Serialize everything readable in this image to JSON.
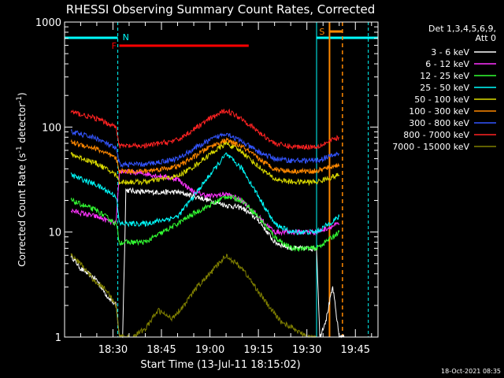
{
  "chart_data": {
    "type": "line",
    "title": "RHESSI Observing Summary Count Rates, Corrected",
    "xlabel": "Start Time (13-Jul-11 18:15:02)",
    "ylabel_main": "Corrected Count Rate (s",
    "ylabel_sup1": "-1",
    "ylabel_mid": " detector",
    "ylabel_sup2": "-1",
    "ylabel_end": ")",
    "y_scale": "log",
    "ylim": [
      1,
      1000
    ],
    "y_ticks": [
      {
        "value": 1,
        "label": "1"
      },
      {
        "value": 10,
        "label": "10"
      },
      {
        "value": 100,
        "label": "100"
      },
      {
        "value": 1000,
        "label": "1000"
      }
    ],
    "xlim": [
      "18:15:02",
      "19:52:00"
    ],
    "x_ticks": [
      {
        "time": "18:30",
        "label": "18:30"
      },
      {
        "time": "18:45",
        "label": "18:45"
      },
      {
        "time": "19:00",
        "label": "19:00"
      },
      {
        "time": "19:15",
        "label": "19:15"
      },
      {
        "time": "19:30",
        "label": "19:30"
      },
      {
        "time": "19:45",
        "label": "19:45"
      }
    ],
    "legend_title_1": "Det 1,3,4,5,6,9,",
    "legend_title_2": "Att 0",
    "legend_placement": "right",
    "series": [
      {
        "name": "3 - 6 keV",
        "color": "#ffffff",
        "points": [
          [
            "18:17",
            6
          ],
          [
            "18:20",
            4.5
          ],
          [
            "18:25",
            3.5
          ],
          [
            "18:28",
            2.5
          ],
          [
            "18:31",
            2
          ],
          [
            "18:32",
            1
          ],
          [
            "18:33",
            1
          ],
          [
            "18:34",
            25
          ],
          [
            "18:40",
            24
          ],
          [
            "18:50",
            24
          ],
          [
            "18:55",
            22
          ],
          [
            "19:00",
            20
          ],
          [
            "19:05",
            18
          ],
          [
            "19:10",
            17
          ],
          [
            "19:15",
            13
          ],
          [
            "19:20",
            8
          ],
          [
            "19:25",
            7
          ],
          [
            "19:30",
            7
          ],
          [
            "19:33",
            7
          ],
          [
            "19:34",
            1
          ],
          [
            "19:36",
            1.5
          ],
          [
            "19:38",
            3
          ],
          [
            "19:40",
            1
          ],
          [
            "19:42",
            1
          ]
        ]
      },
      {
        "name": "6 - 12 keV",
        "color": "#ff33ff",
        "points": [
          [
            "18:17",
            16
          ],
          [
            "18:25",
            14
          ],
          [
            "18:31",
            12
          ],
          [
            "18:32",
            38
          ],
          [
            "18:40",
            36
          ],
          [
            "18:50",
            32
          ],
          [
            "18:55",
            24
          ],
          [
            "19:00",
            22
          ],
          [
            "19:05",
            23
          ],
          [
            "19:10",
            20
          ],
          [
            "19:15",
            14
          ],
          [
            "19:20",
            10
          ],
          [
            "19:25",
            10
          ],
          [
            "19:30",
            10
          ],
          [
            "19:33",
            10
          ],
          [
            "19:40",
            12
          ]
        ]
      },
      {
        "name": "12 - 25 keV",
        "color": "#33ff33",
        "points": [
          [
            "18:17",
            20
          ],
          [
            "18:25",
            16
          ],
          [
            "18:31",
            12
          ],
          [
            "18:32",
            8
          ],
          [
            "18:40",
            8
          ],
          [
            "18:50",
            12
          ],
          [
            "18:55",
            15
          ],
          [
            "19:00",
            18
          ],
          [
            "19:05",
            22
          ],
          [
            "19:10",
            20
          ],
          [
            "19:15",
            14
          ],
          [
            "19:20",
            9
          ],
          [
            "19:25",
            7
          ],
          [
            "19:30",
            7
          ],
          [
            "19:33",
            7
          ],
          [
            "19:40",
            10
          ]
        ]
      },
      {
        "name": "25 - 50 keV",
        "color": "#00ffff",
        "points": [
          [
            "18:17",
            35
          ],
          [
            "18:25",
            28
          ],
          [
            "18:31",
            22
          ],
          [
            "18:32",
            12
          ],
          [
            "18:40",
            12
          ],
          [
            "18:50",
            14
          ],
          [
            "18:55",
            22
          ],
          [
            "19:00",
            35
          ],
          [
            "19:05",
            55
          ],
          [
            "19:10",
            40
          ],
          [
            "19:15",
            22
          ],
          [
            "19:20",
            12
          ],
          [
            "19:25",
            10
          ],
          [
            "19:30",
            10
          ],
          [
            "19:33",
            10
          ],
          [
            "19:40",
            14
          ]
        ]
      },
      {
        "name": "50 - 100 keV",
        "color": "#dddd00",
        "points": [
          [
            "18:17",
            55
          ],
          [
            "18:25",
            45
          ],
          [
            "18:31",
            35
          ],
          [
            "18:32",
            30
          ],
          [
            "18:40",
            30
          ],
          [
            "18:50",
            34
          ],
          [
            "18:55",
            42
          ],
          [
            "19:00",
            55
          ],
          [
            "19:05",
            70
          ],
          [
            "19:10",
            58
          ],
          [
            "19:15",
            42
          ],
          [
            "19:20",
            32
          ],
          [
            "19:25",
            30
          ],
          [
            "19:30",
            30
          ],
          [
            "19:33",
            30
          ],
          [
            "19:40",
            35
          ]
        ]
      },
      {
        "name": "100 - 300 keV",
        "color": "#ff8800",
        "points": [
          [
            "18:17",
            72
          ],
          [
            "18:25",
            62
          ],
          [
            "18:31",
            50
          ],
          [
            "18:32",
            38
          ],
          [
            "18:40",
            38
          ],
          [
            "18:50",
            42
          ],
          [
            "18:55",
            52
          ],
          [
            "19:00",
            65
          ],
          [
            "19:05",
            75
          ],
          [
            "19:10",
            65
          ],
          [
            "19:15",
            50
          ],
          [
            "19:20",
            40
          ],
          [
            "19:25",
            38
          ],
          [
            "19:30",
            38
          ],
          [
            "19:33",
            38
          ],
          [
            "19:40",
            44
          ]
        ]
      },
      {
        "name": "300 - 800 keV",
        "color": "#3355ff",
        "points": [
          [
            "18:17",
            90
          ],
          [
            "18:25",
            78
          ],
          [
            "18:31",
            62
          ],
          [
            "18:32",
            44
          ],
          [
            "18:40",
            44
          ],
          [
            "18:50",
            50
          ],
          [
            "18:55",
            62
          ],
          [
            "19:00",
            75
          ],
          [
            "19:05",
            88
          ],
          [
            "19:10",
            72
          ],
          [
            "19:15",
            58
          ],
          [
            "19:20",
            50
          ],
          [
            "19:25",
            48
          ],
          [
            "19:30",
            48
          ],
          [
            "19:33",
            48
          ],
          [
            "19:40",
            56
          ]
        ]
      },
      {
        "name": "800 - 7000 keV",
        "color": "#ff2222",
        "points": [
          [
            "18:17",
            140
          ],
          [
            "18:25",
            120
          ],
          [
            "18:31",
            100
          ],
          [
            "18:32",
            66
          ],
          [
            "18:40",
            66
          ],
          [
            "18:50",
            75
          ],
          [
            "18:55",
            95
          ],
          [
            "19:00",
            120
          ],
          [
            "19:05",
            145
          ],
          [
            "19:10",
            120
          ],
          [
            "19:15",
            90
          ],
          [
            "19:20",
            70
          ],
          [
            "19:25",
            65
          ],
          [
            "19:30",
            65
          ],
          [
            "19:33",
            65
          ],
          [
            "19:40",
            80
          ]
        ]
      },
      {
        "name": "7000 - 15000 keV",
        "color": "#808000",
        "points": [
          [
            "18:17",
            6
          ],
          [
            "18:20",
            5
          ],
          [
            "18:24",
            3.5
          ],
          [
            "18:28",
            2.8
          ],
          [
            "18:31",
            2
          ],
          [
            "18:32",
            1
          ],
          [
            "18:36",
            1
          ],
          [
            "18:40",
            1.2
          ],
          [
            "18:44",
            1.8
          ],
          [
            "18:48",
            1.5
          ],
          [
            "18:52",
            2
          ],
          [
            "18:56",
            3
          ],
          [
            "19:00",
            4
          ],
          [
            "19:05",
            6
          ],
          [
            "19:10",
            4.5
          ],
          [
            "19:14",
            3
          ],
          [
            "19:18",
            2
          ],
          [
            "19:22",
            1.4
          ],
          [
            "19:26",
            1.2
          ],
          [
            "19:30",
            1
          ],
          [
            "19:33",
            1
          ]
        ]
      }
    ],
    "annotations": {
      "night_label": "N",
      "flare_label": "F",
      "saa_label": "S",
      "night_color": "#00ffff",
      "flare_color": "#ff0000",
      "saa_color": "#ff8800"
    },
    "footer_timestamp": "18-Oct-2021 08:35"
  }
}
